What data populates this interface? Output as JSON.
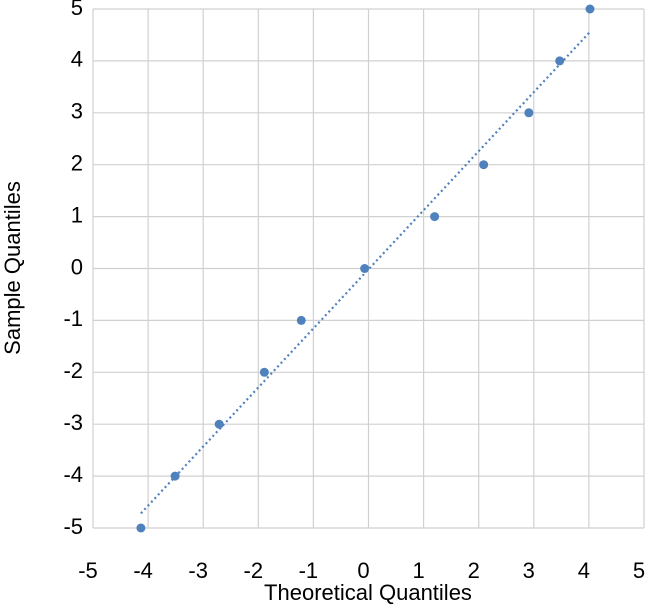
{
  "chart_data": {
    "type": "scatter",
    "x_label": "Theoretical Quantiles",
    "y_label": "Sample Quantiles",
    "x": [
      -4.13,
      -3.51,
      -2.71,
      -1.89,
      -1.22,
      -0.07,
      1.2,
      2.09,
      2.91,
      3.47,
      4.02
    ],
    "values": [
      -5,
      -4,
      -3,
      -2,
      -1,
      0,
      1,
      2,
      3,
      4,
      5
    ],
    "color": "#4f81bd",
    "trendline": true,
    "grid": true,
    "xlim": [
      -5,
      5
    ],
    "xticks": [
      -5,
      -4,
      -3,
      -2,
      -1,
      0,
      1,
      2,
      3,
      4,
      5
    ],
    "ylim": [
      -5,
      5
    ],
    "yticks": [
      -5,
      -4,
      -3,
      -2,
      -1,
      0,
      1,
      2,
      3,
      4,
      5
    ]
  }
}
